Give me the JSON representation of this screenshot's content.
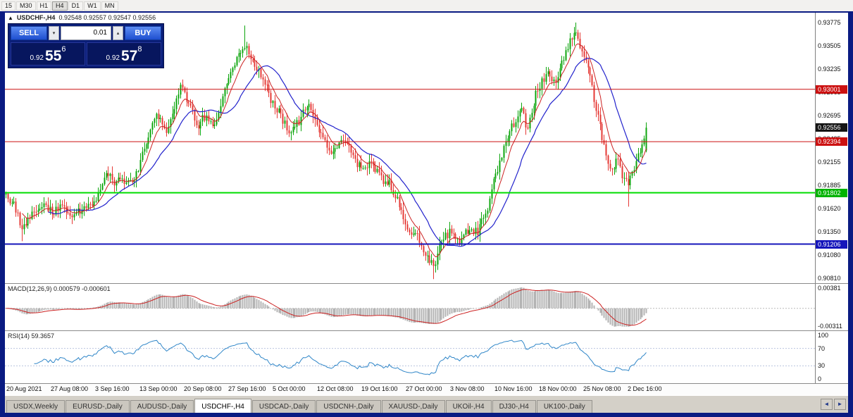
{
  "toolbar": {
    "timeframes": [
      "15",
      "M30",
      "H1",
      "H4",
      "D1",
      "W1",
      "MN"
    ],
    "active": "H4"
  },
  "chart": {
    "symbol_label": "USDCHF-,H4",
    "ohlc": "0.92548 0.92557 0.92547 0.92556"
  },
  "trade_panel": {
    "sell_label": "SELL",
    "buy_label": "BUY",
    "volume": "0.01",
    "sell_price": {
      "prefix": "0.92",
      "big": "55",
      "sup": "6"
    },
    "buy_price": {
      "prefix": "0.92",
      "big": "57",
      "sup": "8"
    }
  },
  "price_axis": {
    "ticks": [
      "0.93775",
      "0.93505",
      "0.93235",
      "0.92965",
      "0.92695",
      "0.92425",
      "0.92155",
      "0.91885",
      "0.91620",
      "0.91350",
      "0.91080",
      "0.90810"
    ],
    "badges": [
      {
        "text": "0.93001",
        "value": 0.93001,
        "color": "#cc1111"
      },
      {
        "text": "0.92556",
        "value": 0.92556,
        "color": "#141414"
      },
      {
        "text": "0.92394",
        "value": 0.92394,
        "color": "#cc1111"
      },
      {
        "text": "0.91802",
        "value": 0.91802,
        "color": "#00b300"
      },
      {
        "text": "0.91206",
        "value": 0.91206,
        "color": "#1515bb"
      }
    ]
  },
  "indicators": {
    "macd_label": "MACD(12,26,9) 0.000579 -0.000601",
    "macd_hi": "0.00381",
    "macd_lo": "-0.00311",
    "rsi_label": "RSI(14) 59.3657",
    "rsi_levels": [
      "100",
      "70",
      "30",
      "0"
    ]
  },
  "time_axis": {
    "labels": [
      "20 Aug 2021",
      "27 Aug 08:00",
      "3 Sep 16:00",
      "13 Sep 00:00",
      "20 Sep 08:00",
      "27 Sep 16:00",
      "5 Oct 00:00",
      "12 Oct 08:00",
      "19 Oct 16:00",
      "27 Oct 00:00",
      "3 Nov 08:00",
      "10 Nov 16:00",
      "18 Nov 00:00",
      "25 Nov 08:00",
      "2 Dec 16:00"
    ]
  },
  "tabs": {
    "items": [
      "USDX,Weekly",
      "EURUSD-,Daily",
      "AUDUSD-,Daily",
      "USDCHF-,H4",
      "USDCAD-,Daily",
      "USDCNH-,Daily",
      "XAUUSD-,Daily",
      "UKOil-,H4",
      "DJ30-,H4",
      "UK100-,Daily"
    ],
    "active_index": 3
  },
  "chart_data": {
    "type": "candlestick",
    "symbol": "USDCHF",
    "timeframe": "H4",
    "bar_count": 320,
    "price_range": [
      0.9081,
      0.93775
    ],
    "current_price": 0.92556,
    "close_path": [
      [
        0.0,
        0.9178
      ],
      [
        0.012,
        0.9166
      ],
      [
        0.025,
        0.914
      ],
      [
        0.04,
        0.9154
      ],
      [
        0.055,
        0.9167
      ],
      [
        0.072,
        0.9159
      ],
      [
        0.088,
        0.9166
      ],
      [
        0.104,
        0.9151
      ],
      [
        0.12,
        0.9161
      ],
      [
        0.14,
        0.9169
      ],
      [
        0.158,
        0.9204
      ],
      [
        0.17,
        0.919
      ],
      [
        0.183,
        0.9197
      ],
      [
        0.198,
        0.9187
      ],
      [
        0.213,
        0.9224
      ],
      [
        0.227,
        0.9257
      ],
      [
        0.24,
        0.9273
      ],
      [
        0.252,
        0.9247
      ],
      [
        0.263,
        0.928
      ],
      [
        0.274,
        0.9307
      ],
      [
        0.286,
        0.9283
      ],
      [
        0.298,
        0.9257
      ],
      [
        0.312,
        0.9269
      ],
      [
        0.326,
        0.9255
      ],
      [
        0.341,
        0.9295
      ],
      [
        0.356,
        0.9328
      ],
      [
        0.374,
        0.9352
      ],
      [
        0.388,
        0.9331
      ],
      [
        0.402,
        0.9311
      ],
      [
        0.416,
        0.9284
      ],
      [
        0.43,
        0.9269
      ],
      [
        0.444,
        0.9251
      ],
      [
        0.458,
        0.9263
      ],
      [
        0.472,
        0.9288
      ],
      [
        0.484,
        0.9257
      ],
      [
        0.497,
        0.9239
      ],
      [
        0.512,
        0.9227
      ],
      [
        0.527,
        0.9245
      ],
      [
        0.542,
        0.9221
      ],
      [
        0.557,
        0.9204
      ],
      [
        0.571,
        0.9214
      ],
      [
        0.586,
        0.9197
      ],
      [
        0.601,
        0.9189
      ],
      [
        0.615,
        0.9163
      ],
      [
        0.629,
        0.9139
      ],
      [
        0.643,
        0.9131
      ],
      [
        0.656,
        0.9109
      ],
      [
        0.669,
        0.9091
      ],
      [
        0.681,
        0.9127
      ],
      [
        0.695,
        0.9136
      ],
      [
        0.71,
        0.9123
      ],
      [
        0.723,
        0.9139
      ],
      [
        0.736,
        0.9135
      ],
      [
        0.751,
        0.9159
      ],
      [
        0.766,
        0.9204
      ],
      [
        0.779,
        0.9236
      ],
      [
        0.791,
        0.9257
      ],
      [
        0.803,
        0.928
      ],
      [
        0.814,
        0.9256
      ],
      [
        0.829,
        0.9299
      ],
      [
        0.845,
        0.9319
      ],
      [
        0.86,
        0.931
      ],
      [
        0.873,
        0.9341
      ],
      [
        0.889,
        0.9369
      ],
      [
        0.901,
        0.9344
      ],
      [
        0.912,
        0.9314
      ],
      [
        0.923,
        0.9273
      ],
      [
        0.934,
        0.9234
      ],
      [
        0.945,
        0.9206
      ],
      [
        0.956,
        0.9218
      ],
      [
        0.964,
        0.9196
      ],
      [
        0.972,
        0.9188
      ],
      [
        0.981,
        0.921
      ],
      [
        0.989,
        0.9224
      ],
      [
        1.0,
        0.9256
      ]
    ],
    "wick_spikes": [
      {
        "f": 0.374,
        "high": 0.9374
      },
      {
        "f": 0.889,
        "high": 0.93775
      },
      {
        "f": 0.669,
        "low": 0.908
      },
      {
        "f": 0.025,
        "low": 0.9124
      },
      {
        "f": 0.972,
        "low": 0.9164
      }
    ],
    "levels": [
      {
        "value": 0.93001,
        "color": "#cc1111",
        "width": 1
      },
      {
        "value": 0.92394,
        "color": "#cc1111",
        "width": 1
      },
      {
        "value": 0.91802,
        "color": "#00dd00",
        "width": 2
      },
      {
        "value": 0.91206,
        "color": "#1515bb",
        "width": 2
      }
    ],
    "ma_fast_period": 8,
    "ma_slow_period": 21,
    "ma_fast_color": "#cc2222",
    "ma_slow_color": "#2222cc",
    "macd": {
      "fast": 12,
      "slow": 26,
      "signal": 9,
      "current": 0.000579,
      "current_signal": -0.000601
    },
    "rsi": {
      "period": 14,
      "current": 59.3657,
      "levels": [
        70,
        30
      ]
    },
    "up_color": "#0da50d",
    "down_color": "#e53935"
  }
}
